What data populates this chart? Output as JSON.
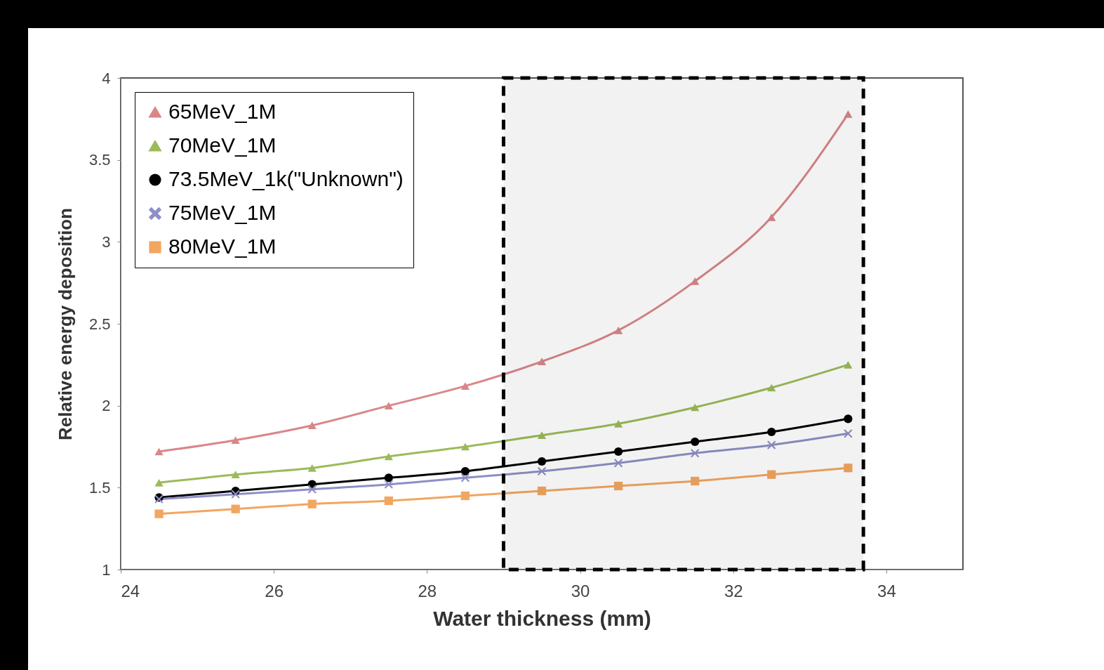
{
  "chart_data": {
    "type": "line",
    "xlabel": "Water thickness (mm)",
    "ylabel": "Relative energy deposition",
    "x": [
      24.5,
      25.5,
      26.5,
      27.5,
      28.5,
      29.5,
      30.5,
      31.5,
      32.5,
      33.5
    ],
    "xlim": [
      24,
      35
    ],
    "xticks": [
      24,
      26,
      28,
      30,
      32,
      34
    ],
    "ylim": [
      1,
      4
    ],
    "yticks": [
      1,
      1.5,
      2,
      2.5,
      3,
      3.5,
      4
    ],
    "grid": false,
    "legend": "top left",
    "bands": [
      {
        "axis": "x",
        "from": 29,
        "to": 33.7,
        "color": "#000000"
      }
    ],
    "series": [
      {
        "name": "65MeV_1M",
        "color": "#d9868a",
        "marker": "triangle",
        "values": [
          1.72,
          1.79,
          1.88,
          2.0,
          2.12,
          2.27,
          2.46,
          2.76,
          3.15,
          3.78
        ]
      },
      {
        "name": "70MeV_1M",
        "color": "#9bbb59",
        "marker": "triangle",
        "values": [
          1.53,
          1.58,
          1.62,
          1.69,
          1.75,
          1.82,
          1.89,
          1.99,
          2.11,
          2.25
        ]
      },
      {
        "name": "73.5MeV_1k(\"Unknown\")",
        "color": "#000000",
        "marker": "circle",
        "values": [
          1.44,
          1.48,
          1.52,
          1.56,
          1.6,
          1.66,
          1.72,
          1.78,
          1.84,
          1.92
        ]
      },
      {
        "name": "75MeV_1M",
        "color": "#8e8fc6",
        "marker": "cross",
        "values": [
          1.43,
          1.46,
          1.49,
          1.52,
          1.56,
          1.6,
          1.65,
          1.71,
          1.76,
          1.83
        ]
      },
      {
        "name": "80MeV_1M",
        "color": "#f2a660",
        "marker": "square",
        "values": [
          1.34,
          1.37,
          1.4,
          1.42,
          1.45,
          1.48,
          1.51,
          1.54,
          1.58,
          1.62
        ]
      }
    ]
  }
}
